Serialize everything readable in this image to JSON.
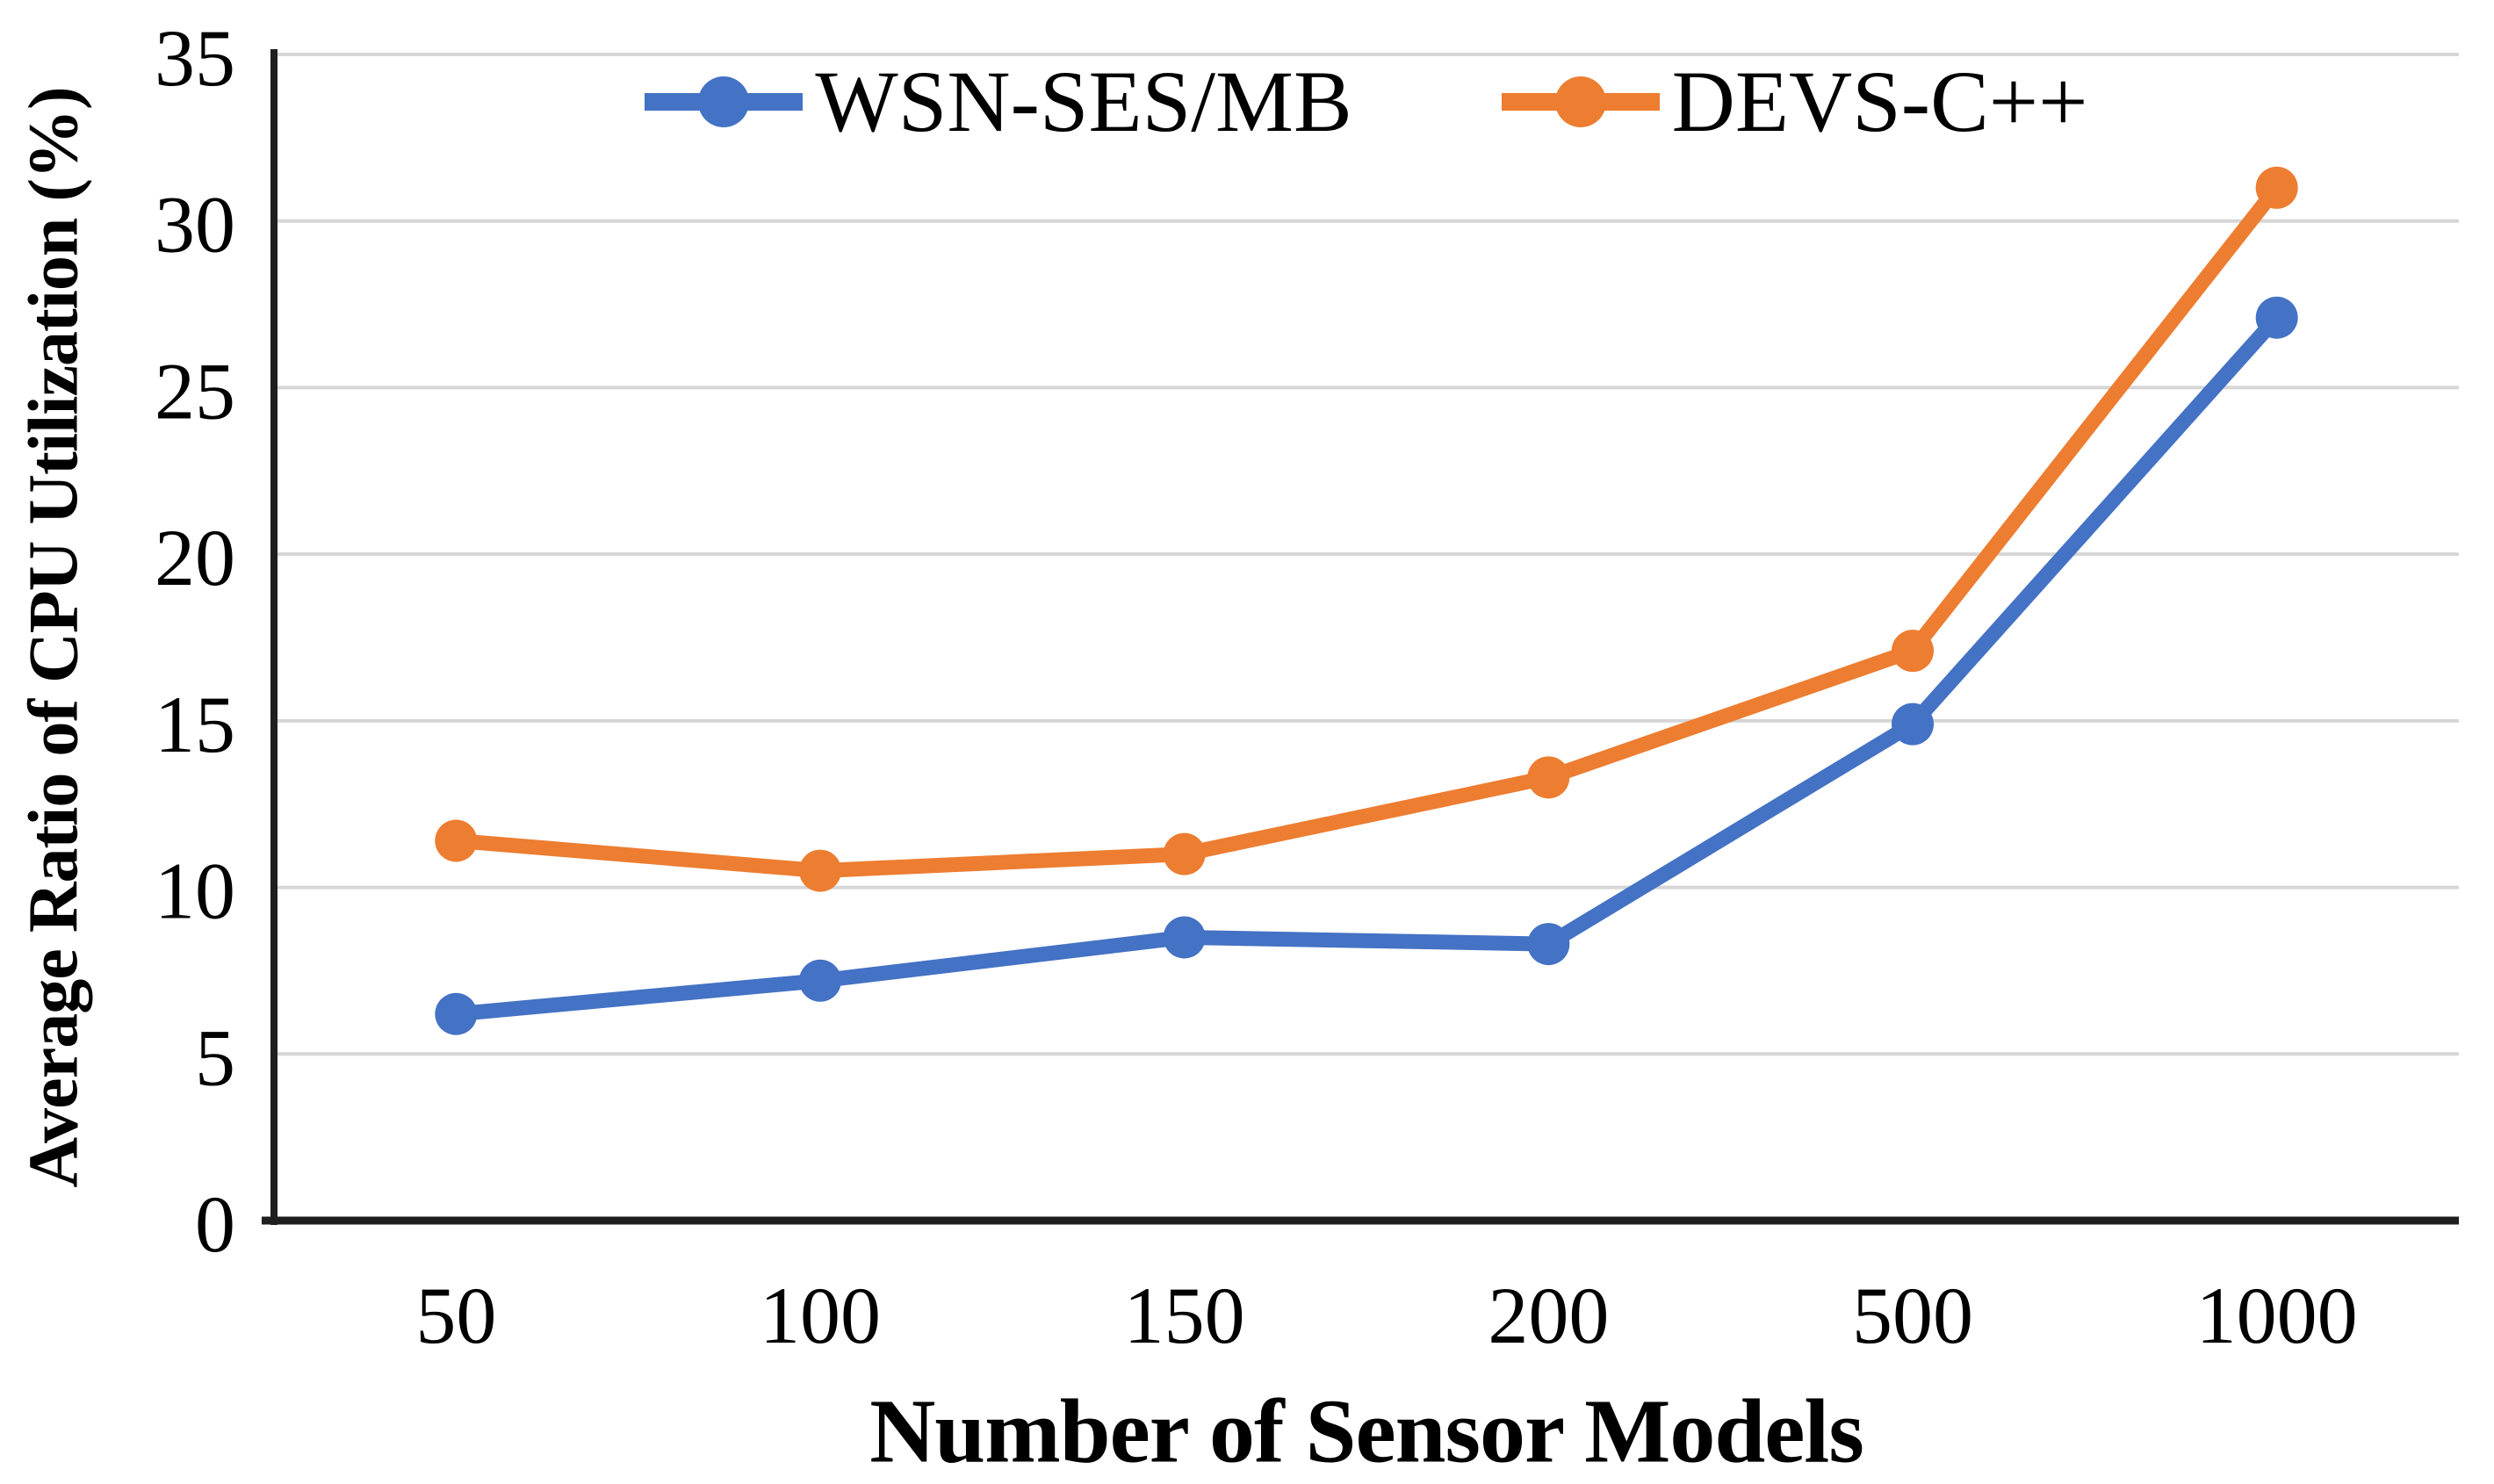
{
  "chart_data": {
    "type": "line",
    "title": "",
    "xlabel": "Number of Sensor Models",
    "ylabel": "Average Ratio of CPU Utilization (%)",
    "categories": [
      "50",
      "100",
      "150",
      "200",
      "500",
      "1000"
    ],
    "series": [
      {
        "name": "WSN-SES/MB",
        "color": "#4472C4",
        "values": [
          6.2,
          7.2,
          8.5,
          8.3,
          14.9,
          27.1
        ]
      },
      {
        "name": "DEVS-C++",
        "color": "#ED7D31",
        "values": [
          11.4,
          10.5,
          11.0,
          13.3,
          17.1,
          31.0
        ]
      }
    ],
    "ylim": [
      0,
      35
    ],
    "yticks": [
      0,
      5,
      10,
      15,
      20,
      25,
      30,
      35
    ],
    "grid": true,
    "legend_position": "top-center",
    "colors": {
      "gridline": "#D6D6D6",
      "axis": "#1F1F1F",
      "text": "#000000"
    }
  }
}
